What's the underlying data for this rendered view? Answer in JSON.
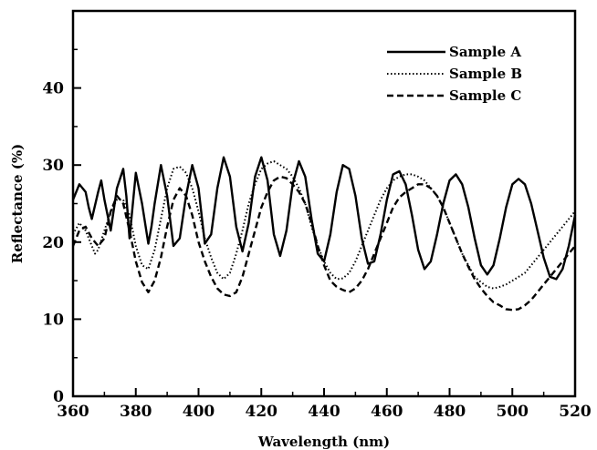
{
  "chart_data": {
    "type": "line",
    "title": "",
    "xlabel": "Wavelength (nm)",
    "ylabel": "Reflectance (%)",
    "xlim": [
      360,
      520
    ],
    "ylim": [
      0,
      50
    ],
    "x_ticks": [
      "360",
      "380",
      "400",
      "420",
      "440",
      "460",
      "480",
      "500",
      "520"
    ],
    "y_ticks": [
      "0",
      "10",
      "20",
      "30",
      "40"
    ],
    "grid": false,
    "legend_position": "top-right",
    "series": [
      {
        "name": "Sample A",
        "line_style": "solid",
        "x": [
          360,
          362,
          364,
          365,
          366,
          368,
          369,
          370,
          372,
          374,
          376,
          377,
          378,
          380,
          382,
          384,
          385,
          386,
          388,
          390,
          392,
          394,
          396,
          398,
          400,
          402,
          404,
          406,
          408,
          410,
          412,
          414,
          416,
          418,
          420,
          422,
          424,
          426,
          428,
          430,
          432,
          434,
          436,
          438,
          440,
          442,
          444,
          446,
          448,
          450,
          452,
          454,
          456,
          458,
          460,
          462,
          464,
          466,
          468,
          470,
          472,
          474,
          476,
          478,
          480,
          482,
          484,
          486,
          488,
          490,
          492,
          494,
          496,
          498,
          500,
          502,
          504,
          506,
          508,
          510,
          512,
          514,
          516,
          518,
          520
        ],
        "values": [
          25.5,
          27.5,
          26.5,
          24.5,
          23.0,
          26.5,
          28.0,
          25.5,
          21.5,
          27.0,
          29.5,
          26.0,
          20.5,
          29.0,
          25.0,
          19.8,
          22.0,
          25.0,
          30.0,
          26.0,
          19.5,
          20.5,
          26.0,
          30.0,
          27.0,
          19.8,
          21.0,
          27.0,
          31.0,
          28.5,
          22.0,
          18.8,
          22.5,
          28.5,
          31.0,
          28.0,
          21.0,
          18.2,
          21.5,
          27.5,
          30.5,
          28.5,
          23.0,
          18.5,
          17.5,
          21.0,
          26.5,
          30.0,
          29.5,
          26.0,
          20.5,
          17.2,
          17.5,
          21.0,
          25.5,
          28.8,
          29.2,
          27.5,
          23.5,
          19.0,
          16.5,
          17.5,
          21.0,
          25.0,
          28.0,
          28.8,
          27.5,
          24.5,
          20.5,
          17.0,
          15.8,
          17.0,
          20.5,
          24.5,
          27.5,
          28.2,
          27.5,
          25.0,
          21.5,
          18.0,
          15.5,
          15.2,
          16.5,
          19.5,
          23.5
        ]
      },
      {
        "name": "Sample B",
        "line_style": "dotted",
        "x": [
          360,
          362,
          364,
          366,
          367,
          368,
          370,
          372,
          374,
          376,
          378,
          380,
          382,
          384,
          386,
          388,
          390,
          392,
          394,
          396,
          398,
          400,
          402,
          404,
          406,
          408,
          410,
          412,
          414,
          416,
          418,
          420,
          422,
          424,
          426,
          428,
          430,
          432,
          434,
          436,
          438,
          440,
          442,
          444,
          446,
          448,
          450,
          452,
          454,
          456,
          458,
          460,
          462,
          464,
          466,
          468,
          470,
          472,
          474,
          476,
          478,
          480,
          482,
          484,
          486,
          488,
          490,
          492,
          494,
          496,
          498,
          500,
          502,
          504,
          506,
          508,
          510,
          512,
          514,
          516,
          518,
          520
        ],
        "values": [
          21.0,
          22.5,
          21.5,
          19.5,
          18.5,
          19.0,
          21.5,
          24.0,
          25.5,
          25.5,
          23.5,
          19.5,
          17.0,
          16.5,
          19.0,
          23.0,
          27.0,
          29.5,
          29.8,
          29.0,
          27.0,
          24.0,
          20.5,
          18.0,
          16.0,
          15.2,
          16.0,
          18.5,
          21.5,
          25.0,
          27.5,
          29.5,
          30.2,
          30.5,
          30.0,
          29.5,
          28.5,
          27.0,
          25.0,
          22.0,
          19.5,
          17.5,
          16.0,
          15.2,
          15.3,
          16.0,
          17.5,
          19.5,
          21.5,
          23.5,
          25.5,
          27.0,
          28.0,
          28.5,
          28.8,
          28.8,
          28.5,
          28.0,
          27.0,
          26.0,
          24.5,
          22.5,
          20.5,
          18.5,
          17.0,
          15.5,
          14.8,
          14.2,
          14.0,
          14.2,
          14.5,
          15.0,
          15.5,
          16.0,
          17.0,
          18.0,
          19.0,
          20.0,
          21.0,
          22.0,
          23.0,
          24.0
        ]
      },
      {
        "name": "Sample C",
        "line_style": "dashed",
        "x": [
          360,
          362,
          364,
          366,
          368,
          370,
          372,
          374,
          376,
          378,
          380,
          382,
          384,
          386,
          388,
          390,
          392,
          394,
          396,
          398,
          400,
          402,
          404,
          406,
          408,
          410,
          412,
          414,
          416,
          418,
          420,
          422,
          424,
          426,
          428,
          430,
          432,
          434,
          436,
          438,
          440,
          442,
          444,
          446,
          448,
          450,
          452,
          454,
          456,
          458,
          460,
          462,
          464,
          466,
          468,
          470,
          472,
          474,
          476,
          478,
          480,
          482,
          484,
          486,
          488,
          490,
          492,
          494,
          496,
          498,
          500,
          502,
          504,
          506,
          508,
          510,
          512,
          514,
          516,
          518,
          520
        ],
        "values": [
          19.5,
          21.5,
          22.0,
          20.5,
          19.5,
          20.5,
          24.0,
          26.0,
          25.0,
          21.5,
          17.5,
          14.8,
          13.5,
          15.0,
          18.0,
          22.0,
          25.5,
          27.0,
          26.0,
          23.5,
          20.0,
          17.5,
          15.5,
          14.0,
          13.2,
          13.0,
          13.5,
          15.5,
          18.5,
          21.5,
          24.5,
          26.5,
          28.0,
          28.5,
          28.3,
          27.5,
          26.5,
          25.0,
          22.5,
          19.5,
          17.0,
          15.0,
          14.2,
          13.8,
          13.5,
          14.0,
          15.0,
          16.5,
          18.5,
          20.5,
          22.5,
          24.5,
          25.8,
          26.5,
          27.0,
          27.5,
          27.5,
          27.0,
          26.0,
          24.5,
          22.5,
          20.5,
          18.5,
          16.8,
          15.2,
          14.0,
          13.0,
          12.2,
          11.8,
          11.3,
          11.2,
          11.3,
          11.8,
          12.5,
          13.5,
          14.5,
          15.5,
          16.5,
          17.5,
          18.5,
          19.5
        ]
      }
    ]
  }
}
